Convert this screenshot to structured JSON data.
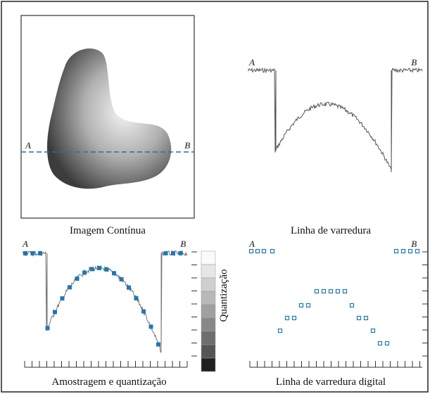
{
  "panels": [
    {
      "caption": "Imagem Contínua",
      "label_a": "A",
      "label_b": "B"
    },
    {
      "caption": "Linha de varredura",
      "label_a": "A",
      "label_b": "B"
    },
    {
      "caption": "Amostragem e quantização",
      "label_a": "A",
      "label_b": "B"
    },
    {
      "caption": "Linha de varredura digital",
      "label_a": "A",
      "label_b": "B"
    }
  ],
  "quantization_label": "Quantização"
}
